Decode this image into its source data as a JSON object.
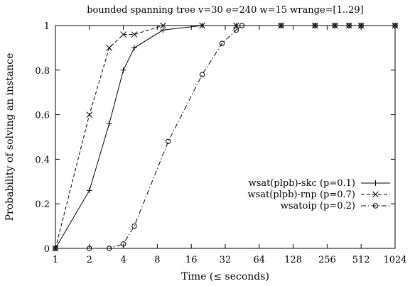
{
  "chart_data": {
    "type": "line",
    "title": "bounded spanning tree v=30 e=240 w=15 wrange=[1..29]",
    "xlabel": "Time (≤ seconds)",
    "ylabel": "Probability of solving an instance",
    "x_scale": "log2",
    "xlim": [
      1,
      1024
    ],
    "ylim": [
      0,
      1
    ],
    "x_ticks": [
      1,
      2,
      4,
      8,
      16,
      32,
      64,
      128,
      256,
      512,
      1024
    ],
    "x_tick_labels": [
      "1",
      "2",
      "4",
      "8",
      "16",
      "32",
      "64",
      "128",
      "256",
      "512",
      "1024"
    ],
    "y_ticks": [
      0,
      0.2,
      0.4,
      0.6,
      0.8,
      1
    ],
    "y_tick_labels": [
      "0",
      "0.2",
      "0.4",
      "0.6",
      "0.8",
      "1"
    ],
    "grid": false,
    "legend_position": "right",
    "series": [
      {
        "name": "wsat(plpb)-skc (p=0.1)",
        "marker": "plus",
        "line_style": "solid",
        "x": [
          1,
          2,
          3,
          4,
          5,
          9,
          20,
          40,
          100,
          200,
          300,
          400,
          512,
          1024
        ],
        "y": [
          0,
          0.26,
          0.56,
          0.8,
          0.9,
          0.98,
          1,
          1,
          1,
          1,
          1,
          1,
          1,
          1
        ]
      },
      {
        "name": "wsat(plpb)-rnp (p=0.7)",
        "marker": "cross",
        "line_style": "dashed",
        "x": [
          1,
          2,
          3,
          4,
          5,
          9,
          20,
          40,
          100,
          200,
          300,
          400,
          512,
          1024
        ],
        "y": [
          0,
          0.6,
          0.9,
          0.96,
          0.96,
          1,
          1,
          1,
          1,
          1,
          1,
          1,
          1,
          1
        ]
      },
      {
        "name": "wsatoip (p=0.2)",
        "marker": "circle",
        "line_style": "dashdot",
        "x": [
          1,
          2,
          3,
          4,
          5,
          10,
          20,
          30,
          40,
          45,
          100,
          200,
          300,
          400,
          512,
          1024
        ],
        "y": [
          0,
          0,
          0,
          0.02,
          0.1,
          0.48,
          0.78,
          0.92,
          0.98,
          1,
          1,
          1,
          1,
          1,
          1,
          1
        ]
      }
    ]
  }
}
